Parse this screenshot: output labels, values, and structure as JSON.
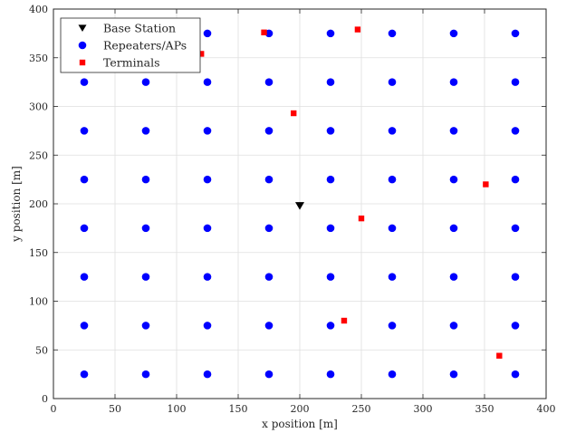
{
  "chart_data": {
    "type": "scatter",
    "xlabel": "x position [m]",
    "ylabel": "y position [m]",
    "xlim": [
      0,
      400
    ],
    "ylim": [
      0,
      400
    ],
    "xticks": [
      "0",
      "50",
      "100",
      "150",
      "200",
      "250",
      "300",
      "350",
      "400"
    ],
    "yticks": [
      "0",
      "50",
      "100",
      "150",
      "200",
      "250",
      "300",
      "350",
      "400"
    ],
    "grid": true,
    "legend_position": "top-left",
    "series": [
      {
        "name": "Base Station",
        "marker": "triangle-down",
        "color": "#000000",
        "points": [
          [
            200,
            198
          ]
        ]
      },
      {
        "name": "Repeaters/APs",
        "marker": "circle",
        "color": "#0000ff",
        "grid_x": [
          25,
          75,
          125,
          175,
          225,
          275,
          325,
          375
        ],
        "grid_y": [
          25,
          75,
          125,
          175,
          225,
          275,
          325,
          375
        ]
      },
      {
        "name": "Terminals",
        "marker": "square",
        "color": "#ff0000",
        "points": [
          [
            171,
            376
          ],
          [
            247,
            379
          ],
          [
            195,
            293
          ],
          [
            351,
            220
          ],
          [
            250,
            185
          ],
          [
            236,
            80
          ],
          [
            362,
            44
          ],
          [
            120,
            354
          ]
        ]
      }
    ]
  }
}
